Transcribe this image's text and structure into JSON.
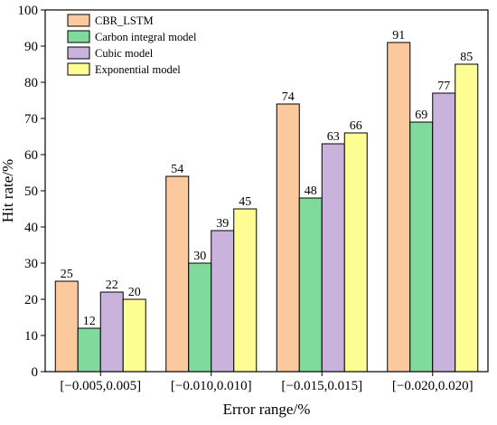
{
  "chart_data": {
    "type": "bar",
    "categories": [
      "[−0.005,0.005]",
      "[−0.010,0.010]",
      "[−0.015,0.015]",
      "[−0.020,0.020]"
    ],
    "series": [
      {
        "name": "CBR_LSTM",
        "values": [
          25,
          54,
          74,
          91
        ],
        "color": "#fcc89e"
      },
      {
        "name": "Carbon integral model",
        "values": [
          12,
          30,
          48,
          69
        ],
        "color": "#7fda9b"
      },
      {
        "name": "Cubic model",
        "values": [
          22,
          39,
          63,
          77
        ],
        "color": "#c9b2dc"
      },
      {
        "name": "Exponential model",
        "values": [
          20,
          45,
          66,
          85
        ],
        "color": "#fdfd93"
      }
    ],
    "xlabel": "Error range/%",
    "ylabel": "Hit rate/%",
    "ylim": [
      0,
      100
    ],
    "yticks": [
      0,
      10,
      20,
      30,
      40,
      50,
      60,
      70,
      80,
      90,
      100
    ],
    "grid": false,
    "legend_position": "top-left",
    "data_labels": true
  }
}
